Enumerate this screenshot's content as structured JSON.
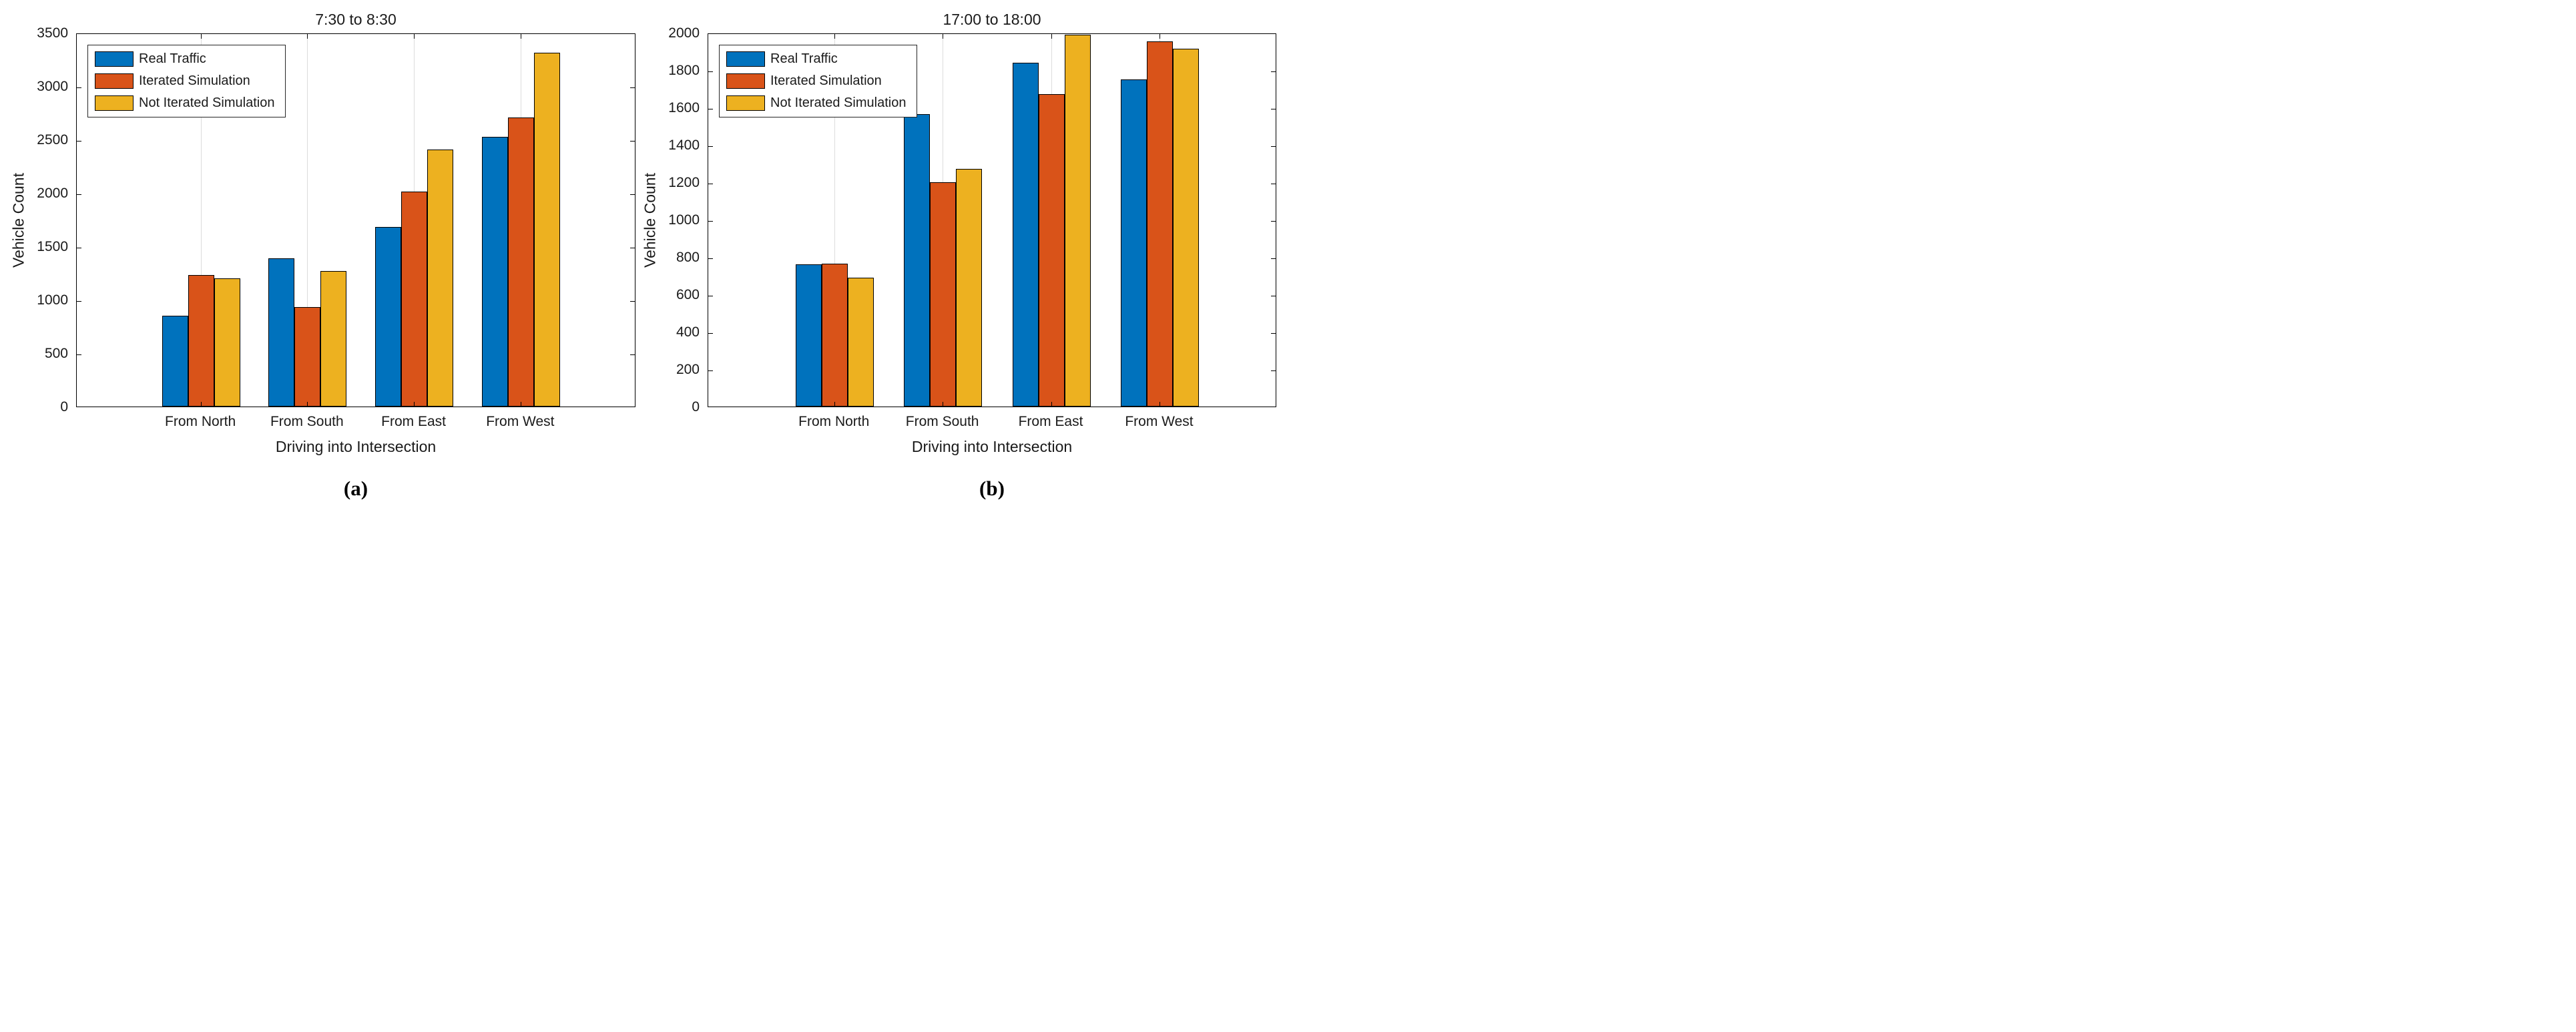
{
  "figure": {
    "ylabel": "Vehicle Count",
    "xlabel": "Driving into Intersection",
    "categories": [
      "From North",
      "From South",
      "From East",
      "From West"
    ],
    "legend": [
      "Real Traffic",
      "Iterated Simulation",
      "Not Iterated Simulation"
    ],
    "series_colors": [
      "#0072BD",
      "#D95319",
      "#EDB120"
    ],
    "gridline_color": "#dcdcdc",
    "axis_color": "#000000"
  },
  "chart_data": [
    {
      "type": "bar",
      "title": "7:30 to 8:30",
      "caption": "(a)",
      "xlabel": "Driving into Intersection",
      "ylabel": "Vehicle Count",
      "categories": [
        "From North",
        "From South",
        "From East",
        "From West"
      ],
      "series": [
        {
          "name": "Real Traffic",
          "color": "#0072BD",
          "values": [
            850,
            1390,
            1680,
            2525
          ]
        },
        {
          "name": "Iterated Simulation",
          "color": "#D95319",
          "values": [
            1230,
            930,
            2015,
            2705
          ]
        },
        {
          "name": "Not Iterated Simulation",
          "color": "#EDB120",
          "values": [
            1200,
            1270,
            2405,
            3310
          ]
        }
      ],
      "ylim": [
        0,
        3500
      ],
      "ytick_step": 500,
      "yticks": [
        0,
        500,
        1000,
        1500,
        2000,
        2500,
        3000,
        3500
      ],
      "grid": "x-only",
      "legend_position": "top-left"
    },
    {
      "type": "bar",
      "title": "17:00 to 18:00",
      "caption": "(b)",
      "xlabel": "Driving into Intersection",
      "ylabel": "Vehicle Count",
      "categories": [
        "From North",
        "From South",
        "From East",
        "From West"
      ],
      "series": [
        {
          "name": "Real Traffic",
          "color": "#0072BD",
          "values": [
            760,
            1565,
            1840,
            1750
          ]
        },
        {
          "name": "Iterated Simulation",
          "color": "#D95319",
          "values": [
            765,
            1200,
            1670,
            1955
          ]
        },
        {
          "name": "Not Iterated Simulation",
          "color": "#EDB120",
          "values": [
            690,
            1270,
            1990,
            1915
          ]
        }
      ],
      "ylim": [
        0,
        2000
      ],
      "ytick_step": 200,
      "yticks": [
        0,
        200,
        400,
        600,
        800,
        1000,
        1200,
        1400,
        1600,
        1800,
        2000
      ],
      "grid": "x-only",
      "legend_position": "top-left"
    }
  ]
}
